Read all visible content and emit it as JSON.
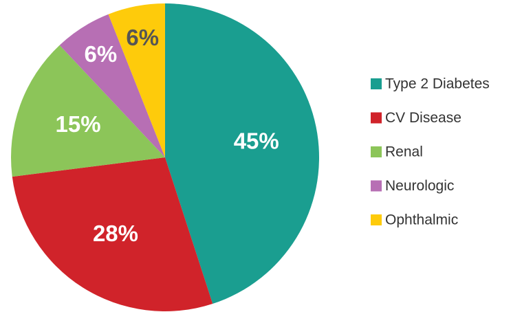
{
  "chart_data": {
    "type": "pie",
    "categories": [
      "Type 2 Diabetes",
      "CV Disease",
      "Renal",
      "Neurologic",
      "Ophthalmic"
    ],
    "values": [
      45,
      28,
      15,
      6,
      6
    ],
    "value_labels": [
      "45%",
      "28%",
      "15%",
      "6%",
      "6%"
    ],
    "colors": [
      "#1a9e90",
      "#d0232a",
      "#8cc559",
      "#b76fb4",
      "#fecb0b"
    ],
    "label_colors": [
      "#ffffff",
      "#ffffff",
      "#ffffff",
      "#ffffff",
      "#555555"
    ],
    "legend": "right"
  }
}
